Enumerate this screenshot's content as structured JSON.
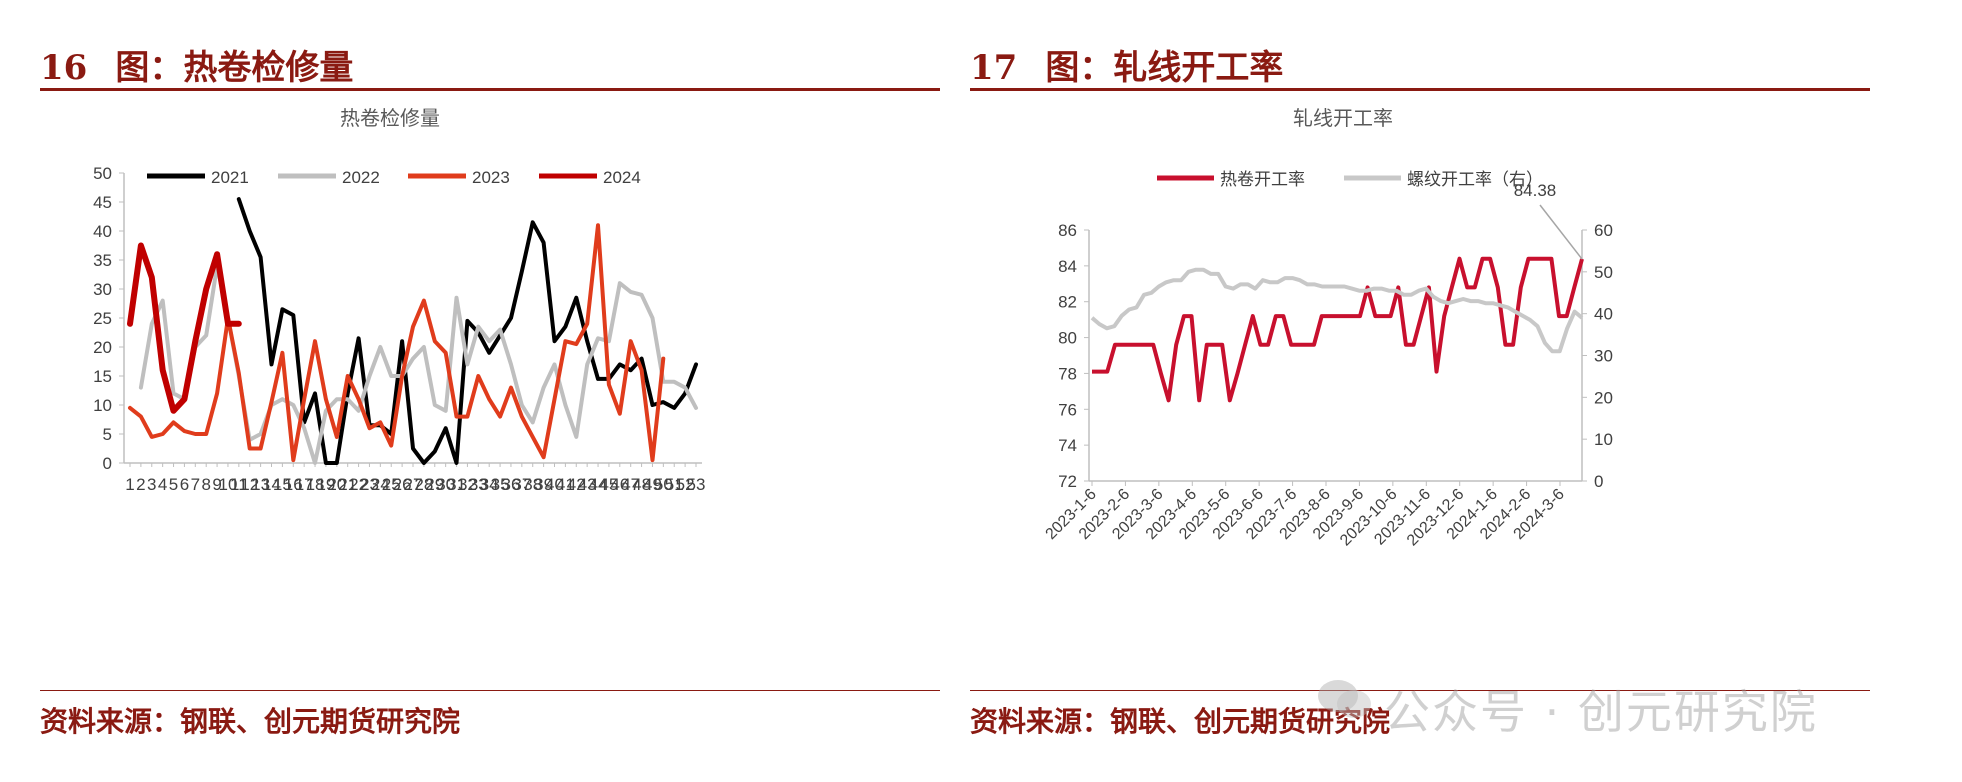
{
  "left": {
    "fig_number": "16",
    "fig_title": "图：热卷检修量",
    "source": "资料来源：钢联、创元期货研究院"
  },
  "right": {
    "fig_number": "17",
    "fig_title": "图：轧线开工率",
    "source": "资料来源：钢联、创元期货研究院"
  },
  "watermark": {
    "text": "公众号 · 创元研究院"
  },
  "chart_data": [
    {
      "type": "line",
      "title": "热卷检修量",
      "legend_position": "top",
      "x": [
        "1",
        "2",
        "3",
        "4",
        "5",
        "6",
        "7",
        "8",
        "9",
        "10",
        "11",
        "12",
        "13",
        "14",
        "15",
        "16",
        "17",
        "18",
        "19",
        "20",
        "21",
        "22",
        "23",
        "24",
        "25",
        "26",
        "27",
        "28",
        "29",
        "30",
        "31",
        "32",
        "33",
        "34",
        "35",
        "36",
        "37",
        "38",
        "39",
        "40",
        "41",
        "42",
        "43",
        "44",
        "45",
        "46",
        "47",
        "48",
        "49",
        "50",
        "51",
        "52",
        "53"
      ],
      "ylim": [
        0,
        50
      ],
      "yticks": [
        0,
        5,
        10,
        15,
        20,
        25,
        30,
        35,
        40,
        45,
        50
      ],
      "grid": false,
      "colors": {
        "2021": "#000000",
        "2022": "#bfbfbf",
        "2023": "#e03c1c",
        "2024": "#c00000"
      },
      "series": [
        {
          "name": "2021",
          "values": [
            null,
            null,
            null,
            null,
            null,
            null,
            null,
            null,
            null,
            null,
            45.5,
            40,
            35.5,
            17,
            26.5,
            25.5,
            7,
            12,
            0,
            0,
            12,
            21.5,
            6.5,
            6.5,
            5,
            21,
            2.5,
            0,
            2,
            6,
            0,
            24.5,
            22.5,
            19,
            22,
            25,
            33,
            41.5,
            38,
            21,
            23.5,
            28.5,
            21,
            14.5,
            14.5,
            17,
            16,
            18,
            10,
            10.5,
            9.5,
            12,
            17
          ]
        },
        {
          "name": "2022",
          "values": [
            null,
            13,
            24,
            28,
            12,
            11,
            20,
            22,
            34,
            25,
            15,
            4,
            5,
            10,
            11,
            10,
            6,
            0,
            9,
            11,
            11,
            9,
            15,
            20,
            15,
            15,
            18,
            20,
            10,
            9,
            28.5,
            17,
            23.5,
            21,
            23,
            17,
            10,
            7,
            13,
            17,
            10,
            4.5,
            17,
            21.5,
            21,
            31,
            29.5,
            29,
            25,
            14,
            14,
            13,
            9.5
          ]
        },
        {
          "name": "2023",
          "values": [
            9.5,
            8,
            4.5,
            5,
            7,
            5.5,
            5,
            5,
            12,
            25,
            15.5,
            2.5,
            2.5,
            10.5,
            19,
            0.5,
            11,
            21,
            11,
            4.5,
            15,
            11,
            6,
            7,
            3,
            15,
            23.5,
            28,
            21,
            19,
            8,
            8,
            15,
            11,
            8,
            13,
            8,
            4.5,
            1,
            11,
            21,
            20.5,
            24,
            41,
            13.5,
            8.5,
            21,
            16,
            0.5,
            18,
            null,
            null,
            null
          ]
        },
        {
          "name": "2024",
          "values": [
            24,
            37.5,
            32,
            16,
            9,
            11,
            21,
            30,
            36,
            24,
            24,
            null,
            null,
            null,
            null,
            null,
            null,
            null,
            null,
            null,
            null,
            null,
            null,
            null,
            null,
            null,
            null,
            null,
            null,
            null,
            null,
            null,
            null,
            null,
            null,
            null,
            null,
            null,
            null,
            null,
            null,
            null,
            null,
            null,
            null,
            null,
            null,
            null,
            null,
            null,
            null,
            null,
            null
          ]
        }
      ]
    },
    {
      "type": "line",
      "title": "轧线开工率",
      "legend_position": "top",
      "grid": false,
      "x_tick_labels": [
        "2023-1-6",
        "2023-2-6",
        "2023-3-6",
        "2023-4-6",
        "2023-5-6",
        "2023-6-6",
        "2023-7-6",
        "2023-8-6",
        "2023-9-6",
        "2023-10-6",
        "2023-11-6",
        "2023-12-6",
        "2024-1-6",
        "2024-2-6",
        "2024-3-6"
      ],
      "ylim": [
        72,
        86
      ],
      "yticks": [
        72,
        74,
        76,
        78,
        80,
        82,
        84,
        86
      ],
      "y2lim": [
        0,
        60
      ],
      "y2ticks": [
        0,
        10,
        20,
        30,
        40,
        50,
        60
      ],
      "annotation": {
        "text": "84.38",
        "value": 84.38
      },
      "colors": {
        "热卷开工率": "#c8102e",
        "螺纹开工率（右）": "#c8c8c8"
      },
      "series": [
        {
          "name": "热卷开工率",
          "axis": "left",
          "values": [
            78.1,
            78.1,
            78.1,
            79.6,
            79.6,
            79.6,
            79.6,
            79.6,
            79.6,
            78.0,
            76.5,
            79.6,
            81.2,
            81.2,
            76.5,
            79.6,
            79.6,
            79.6,
            76.5,
            78.0,
            79.6,
            81.2,
            79.6,
            79.6,
            81.2,
            81.2,
            79.6,
            79.6,
            79.6,
            79.6,
            81.2,
            81.2,
            81.2,
            81.2,
            81.2,
            81.2,
            82.8,
            81.2,
            81.2,
            81.2,
            82.8,
            79.6,
            79.6,
            81.2,
            82.8,
            78.1,
            81.2,
            82.8,
            84.4,
            82.8,
            82.8,
            84.4,
            84.4,
            82.8,
            79.6,
            79.6,
            82.8,
            84.4,
            84.4,
            84.4,
            84.4,
            81.2,
            81.2,
            82.8,
            84.38
          ]
        },
        {
          "name": "螺纹开工率（右）",
          "axis": "right",
          "values": [
            39,
            37.5,
            36.5,
            37,
            39.5,
            41,
            41.5,
            44.5,
            45,
            46.5,
            47.5,
            48,
            48,
            50,
            50.5,
            50.5,
            49.5,
            49.5,
            46.5,
            46,
            47,
            47,
            46,
            48,
            47.5,
            47.5,
            48.5,
            48.5,
            48,
            47,
            47,
            46.5,
            46.5,
            46.5,
            46.5,
            46,
            45.5,
            45.5,
            46,
            46,
            45.5,
            45.5,
            44.5,
            44.5,
            45.5,
            46,
            44,
            43,
            42.5,
            43,
            43.5,
            43,
            43,
            42.5,
            42.5,
            42,
            41.5,
            40.5,
            39.5,
            38.5,
            37,
            33,
            31,
            31,
            36.5,
            40.5,
            39
          ]
        }
      ]
    }
  ]
}
